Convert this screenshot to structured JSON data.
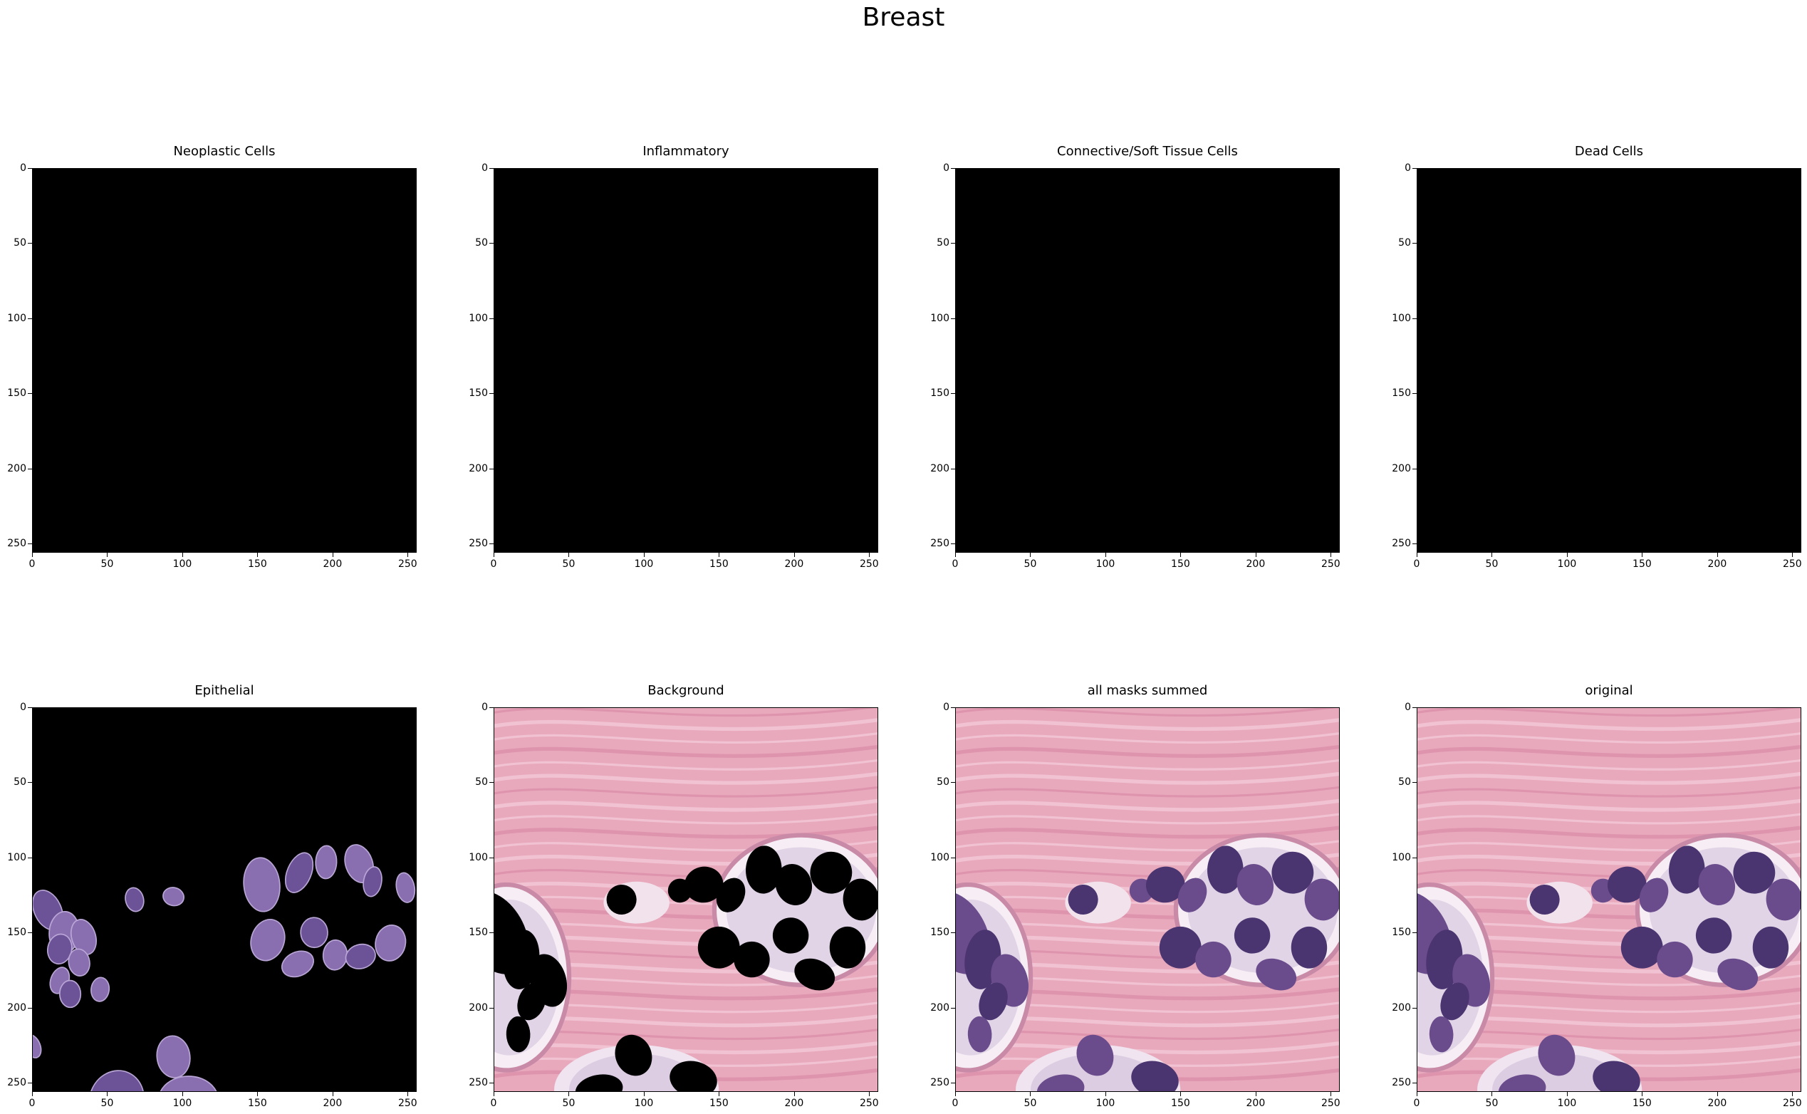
{
  "suptitle": "Breast",
  "axes": {
    "x_ticks": [
      "0",
      "50",
      "100",
      "150",
      "200",
      "250"
    ],
    "y_ticks": [
      "0",
      "50",
      "100",
      "150",
      "200",
      "250"
    ],
    "range": [
      0,
      256
    ]
  },
  "panels": [
    {
      "title": "Neoplastic Cells",
      "content": "empty-mask"
    },
    {
      "title": "Inflammatory",
      "content": "empty-mask"
    },
    {
      "title": "Connective/Soft Tissue Cells",
      "content": "empty-mask"
    },
    {
      "title": "Dead Cells",
      "content": "empty-mask"
    },
    {
      "title": "Epithelial",
      "content": "nuclei-on-black"
    },
    {
      "title": "Background",
      "content": "tissue-with-black-nuclei"
    },
    {
      "title": "all masks summed",
      "content": "full-tissue"
    },
    {
      "title": "original",
      "content": "full-tissue"
    }
  ],
  "colors": {
    "mask_black": "#000000",
    "stroma_pink": "#e9a9bd",
    "stroma_light": "#f3cfdb",
    "lumen_white": "#f6eef4",
    "nucleus_purple": "#6a4c8c",
    "nucleus_dark": "#4a3570"
  }
}
